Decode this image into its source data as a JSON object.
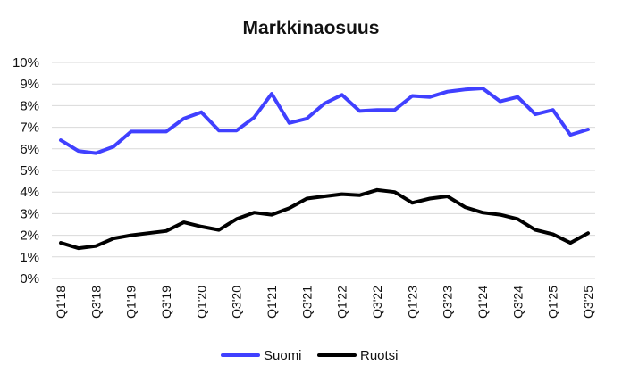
{
  "chart_data": {
    "type": "line",
    "title": "Markkinaosuus",
    "xlabel": "",
    "ylabel": "",
    "ylim": [
      0,
      10
    ],
    "y_tick_labels": [
      "0%",
      "1%",
      "2%",
      "3%",
      "4%",
      "5%",
      "6%",
      "7%",
      "8%",
      "9%",
      "10%"
    ],
    "grid": true,
    "legend_position": "bottom-center",
    "x": [
      "Q1'18",
      "Q2'18",
      "Q3'18",
      "Q4'18",
      "Q1'19",
      "Q2'19",
      "Q3'19",
      "Q4'19",
      "Q1'20",
      "Q2'20",
      "Q3'20",
      "Q4'20",
      "Q1'21",
      "Q2'21",
      "Q3'21",
      "Q4'21",
      "Q1'22",
      "Q2'22",
      "Q3'22",
      "Q4'22",
      "Q1'23",
      "Q2'23",
      "Q3'23",
      "Q4'23",
      "Q1'24",
      "Q2'24",
      "Q3'24",
      "Q4'24",
      "Q1'25",
      "Q2'25",
      "Q3'25"
    ],
    "x_tick_labels_shown": [
      "Q1'18",
      "Q3'18",
      "Q1'19",
      "Q3'19",
      "Q1'20",
      "Q3'20",
      "Q1'21",
      "Q3'21",
      "Q1'22",
      "Q3'22",
      "Q1'23",
      "Q3'23",
      "Q1'24",
      "Q3'24",
      "Q1'25",
      "Q3'25"
    ],
    "series": [
      {
        "name": "Suomi",
        "color": "#4040ff",
        "values": [
          6.4,
          5.9,
          5.8,
          6.1,
          6.8,
          6.8,
          6.8,
          7.4,
          7.7,
          6.85,
          6.85,
          7.45,
          8.55,
          7.2,
          7.4,
          8.1,
          8.5,
          7.75,
          7.8,
          7.8,
          8.45,
          8.4,
          8.65,
          8.75,
          8.8,
          8.2,
          8.4,
          7.6,
          7.8,
          6.65,
          6.9
        ]
      },
      {
        "name": "Ruotsi",
        "color": "#000000",
        "values": [
          1.65,
          1.4,
          1.5,
          1.85,
          2.0,
          2.1,
          2.2,
          2.6,
          2.4,
          2.25,
          2.75,
          3.05,
          2.95,
          3.25,
          3.7,
          3.8,
          3.9,
          3.85,
          4.1,
          4.0,
          3.5,
          3.7,
          3.8,
          3.3,
          3.05,
          2.95,
          2.75,
          2.25,
          2.05,
          1.65,
          2.1
        ]
      }
    ]
  }
}
